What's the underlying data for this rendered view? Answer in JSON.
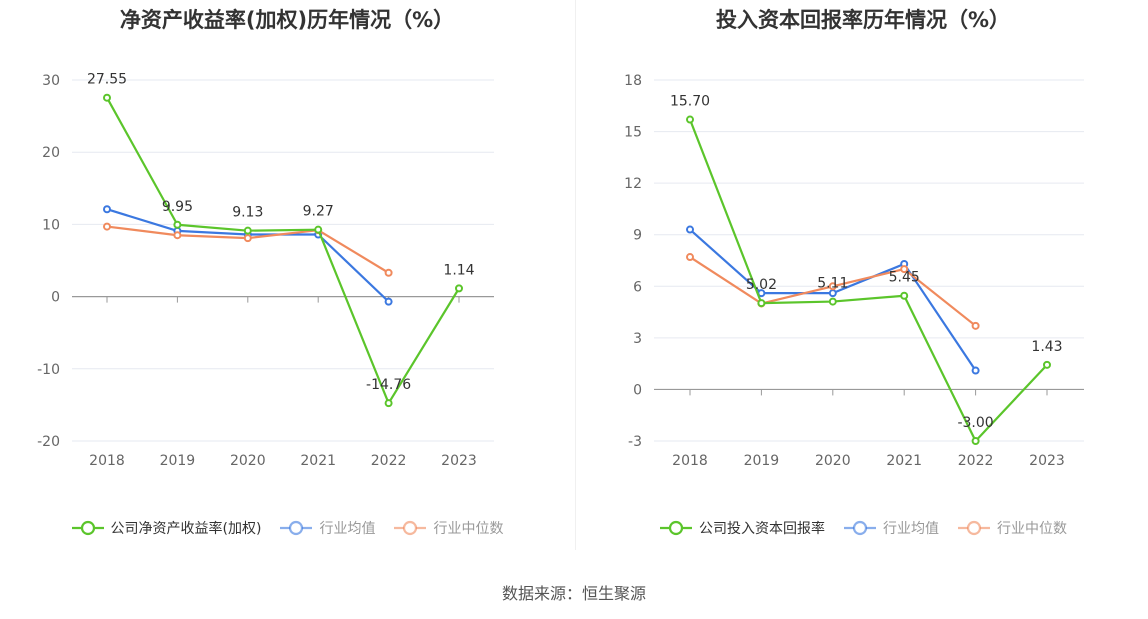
{
  "chart_data": [
    {
      "type": "line",
      "title": "净资产收益率(加权)历年情况（%）",
      "categories": [
        "2018",
        "2019",
        "2020",
        "2021",
        "2022",
        "2023"
      ],
      "yticks": [
        "30",
        "20",
        "10",
        "0",
        "-10",
        "-20"
      ],
      "ylim": [
        -20,
        30
      ],
      "grid": true,
      "legend_position": "bottom",
      "series": [
        {
          "name": "公司净资产收益率(加权)",
          "color": "#5bc52b",
          "values": [
            27.55,
            9.95,
            9.13,
            9.27,
            -14.76,
            1.14
          ],
          "labels": [
            "27.55",
            "9.95",
            "9.13",
            "9.27",
            "-14.76",
            "1.14"
          ],
          "legend_dim": false
        },
        {
          "name": "行业均值",
          "color": "#3b78e0",
          "values": [
            12.1,
            9.1,
            8.6,
            8.6,
            -0.7,
            null
          ],
          "legend_dim": true
        },
        {
          "name": "行业中位数",
          "color": "#f08a5d",
          "values": [
            9.7,
            8.5,
            8.1,
            9.2,
            3.3,
            null
          ],
          "legend_dim": true
        }
      ]
    },
    {
      "type": "line",
      "title": "投入资本回报率历年情况（%）",
      "categories": [
        "2018",
        "2019",
        "2020",
        "2021",
        "2022",
        "2023"
      ],
      "yticks": [
        "18",
        "15",
        "12",
        "9",
        "6",
        "3",
        "0",
        "-3"
      ],
      "ylim": [
        -3,
        18
      ],
      "grid": true,
      "legend_position": "bottom",
      "series": [
        {
          "name": "公司投入资本回报率",
          "color": "#5bc52b",
          "values": [
            15.7,
            5.02,
            5.11,
            5.45,
            -3.0,
            1.43
          ],
          "labels": [
            "15.70",
            "5.02",
            "5.11",
            "5.45",
            "-3.00",
            "1.43"
          ],
          "legend_dim": false
        },
        {
          "name": "行业均值",
          "color": "#3b78e0",
          "values": [
            9.3,
            5.6,
            5.6,
            7.3,
            1.1,
            null
          ],
          "legend_dim": true
        },
        {
          "name": "行业中位数",
          "color": "#f08a5d",
          "values": [
            7.7,
            5.0,
            6.0,
            7.0,
            3.7,
            null
          ],
          "legend_dim": true
        }
      ]
    }
  ],
  "source": "数据来源：恒生聚源"
}
